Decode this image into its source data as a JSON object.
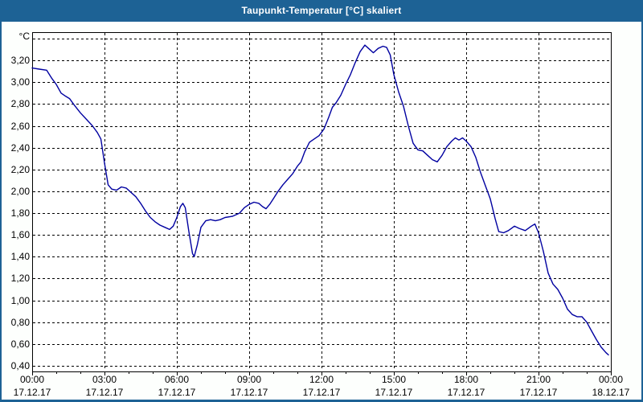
{
  "window": {
    "title": "Taupunkt-Temperatur [°C] skaliert"
  },
  "colors": {
    "titlebar": "#1d6295",
    "window_background": "#fdfffd",
    "plot_background": "#ffffff",
    "plot_border": "#000000",
    "gridline": "#000000",
    "text": "#000000",
    "line": "#0000a0"
  },
  "chart_data": {
    "type": "line",
    "title": "Taupunkt-Temperatur [°C] skaliert",
    "unit_label": "°C",
    "xlabel": "",
    "ylabel": "°C",
    "x_range_hours": [
      0,
      24
    ],
    "y_grid": {
      "min": 0.4,
      "max": 3.4,
      "step": 0.2
    },
    "grid": "dashed",
    "legend_position": "none",
    "y_ticks": [
      {
        "value": 3.2,
        "label": "3,20"
      },
      {
        "value": 3.0,
        "label": "3,00"
      },
      {
        "value": 2.8,
        "label": "2,80"
      },
      {
        "value": 2.6,
        "label": "2,60"
      },
      {
        "value": 2.4,
        "label": "2,40"
      },
      {
        "value": 2.2,
        "label": "2,20"
      },
      {
        "value": 2.0,
        "label": "2,00"
      },
      {
        "value": 1.8,
        "label": "1,80"
      },
      {
        "value": 1.6,
        "label": "1,60"
      },
      {
        "value": 1.4,
        "label": "1,40"
      },
      {
        "value": 1.2,
        "label": "1,20"
      },
      {
        "value": 1.0,
        "label": "1,00"
      },
      {
        "value": 0.8,
        "label": "0,80"
      },
      {
        "value": 0.6,
        "label": "0,60"
      },
      {
        "value": 0.4,
        "label": "0,40"
      }
    ],
    "x_ticks": [
      {
        "hour": 0,
        "time": "00:00",
        "date": "17.12.17"
      },
      {
        "hour": 3,
        "time": "03:00",
        "date": "17.12.17"
      },
      {
        "hour": 6,
        "time": "06:00",
        "date": "17.12.17"
      },
      {
        "hour": 9,
        "time": "09:00",
        "date": "17.12.17"
      },
      {
        "hour": 12,
        "time": "12:00",
        "date": "17.12.17"
      },
      {
        "hour": 15,
        "time": "15:00",
        "date": "17.12.17"
      },
      {
        "hour": 18,
        "time": "18:00",
        "date": "17.12.17"
      },
      {
        "hour": 21,
        "time": "21:00",
        "date": "17.12.17"
      },
      {
        "hour": 24,
        "time": "00:00",
        "date": "18.12.17"
      }
    ],
    "series": [
      {
        "name": "Taupunkt-Temperatur",
        "color": "#0000a0",
        "points": [
          [
            0.0,
            3.13
          ],
          [
            0.3,
            3.12
          ],
          [
            0.6,
            3.11
          ],
          [
            0.8,
            3.04
          ],
          [
            1.0,
            2.98
          ],
          [
            1.2,
            2.9
          ],
          [
            1.4,
            2.87
          ],
          [
            1.55,
            2.85
          ],
          [
            1.75,
            2.79
          ],
          [
            2.0,
            2.72
          ],
          [
            2.25,
            2.66
          ],
          [
            2.5,
            2.6
          ],
          [
            2.7,
            2.54
          ],
          [
            2.85,
            2.48
          ],
          [
            3.0,
            2.26
          ],
          [
            3.15,
            2.06
          ],
          [
            3.3,
            2.02
          ],
          [
            3.5,
            2.01
          ],
          [
            3.7,
            2.04
          ],
          [
            3.9,
            2.03
          ],
          [
            4.1,
            1.99
          ],
          [
            4.3,
            1.95
          ],
          [
            4.5,
            1.89
          ],
          [
            4.7,
            1.82
          ],
          [
            4.9,
            1.76
          ],
          [
            5.1,
            1.72
          ],
          [
            5.3,
            1.69
          ],
          [
            5.5,
            1.67
          ],
          [
            5.7,
            1.65
          ],
          [
            5.85,
            1.68
          ],
          [
            6.0,
            1.76
          ],
          [
            6.15,
            1.86
          ],
          [
            6.25,
            1.89
          ],
          [
            6.35,
            1.85
          ],
          [
            6.5,
            1.63
          ],
          [
            6.65,
            1.43
          ],
          [
            6.72,
            1.4
          ],
          [
            6.85,
            1.51
          ],
          [
            7.0,
            1.67
          ],
          [
            7.2,
            1.73
          ],
          [
            7.4,
            1.74
          ],
          [
            7.6,
            1.73
          ],
          [
            7.8,
            1.74
          ],
          [
            8.0,
            1.76
          ],
          [
            8.3,
            1.77
          ],
          [
            8.6,
            1.8
          ],
          [
            8.8,
            1.85
          ],
          [
            9.0,
            1.88
          ],
          [
            9.2,
            1.9
          ],
          [
            9.4,
            1.89
          ],
          [
            9.55,
            1.86
          ],
          [
            9.7,
            1.84
          ],
          [
            9.85,
            1.88
          ],
          [
            10.0,
            1.93
          ],
          [
            10.2,
            2.0
          ],
          [
            10.4,
            2.06
          ],
          [
            10.6,
            2.11
          ],
          [
            10.8,
            2.16
          ],
          [
            11.0,
            2.23
          ],
          [
            11.15,
            2.27
          ],
          [
            11.3,
            2.36
          ],
          [
            11.5,
            2.45
          ],
          [
            11.7,
            2.48
          ],
          [
            11.9,
            2.51
          ],
          [
            12.1,
            2.57
          ],
          [
            12.3,
            2.68
          ],
          [
            12.45,
            2.77
          ],
          [
            12.6,
            2.81
          ],
          [
            12.8,
            2.88
          ],
          [
            13.0,
            2.98
          ],
          [
            13.2,
            3.07
          ],
          [
            13.4,
            3.18
          ],
          [
            13.6,
            3.28
          ],
          [
            13.8,
            3.34
          ],
          [
            13.95,
            3.31
          ],
          [
            14.15,
            3.27
          ],
          [
            14.35,
            3.31
          ],
          [
            14.55,
            3.33
          ],
          [
            14.7,
            3.32
          ],
          [
            14.85,
            3.25
          ],
          [
            15.0,
            3.07
          ],
          [
            15.2,
            2.91
          ],
          [
            15.4,
            2.78
          ],
          [
            15.6,
            2.6
          ],
          [
            15.8,
            2.44
          ],
          [
            16.0,
            2.38
          ],
          [
            16.2,
            2.37
          ],
          [
            16.4,
            2.33
          ],
          [
            16.6,
            2.29
          ],
          [
            16.8,
            2.27
          ],
          [
            17.0,
            2.33
          ],
          [
            17.2,
            2.41
          ],
          [
            17.4,
            2.46
          ],
          [
            17.55,
            2.49
          ],
          [
            17.7,
            2.47
          ],
          [
            17.85,
            2.49
          ],
          [
            18.0,
            2.46
          ],
          [
            18.2,
            2.41
          ],
          [
            18.4,
            2.31
          ],
          [
            18.6,
            2.17
          ],
          [
            18.8,
            2.05
          ],
          [
            19.0,
            1.93
          ],
          [
            19.2,
            1.75
          ],
          [
            19.35,
            1.63
          ],
          [
            19.55,
            1.62
          ],
          [
            19.75,
            1.64
          ],
          [
            20.0,
            1.68
          ],
          [
            20.2,
            1.66
          ],
          [
            20.45,
            1.64
          ],
          [
            20.7,
            1.68
          ],
          [
            20.85,
            1.7
          ],
          [
            21.0,
            1.62
          ],
          [
            21.2,
            1.45
          ],
          [
            21.4,
            1.25
          ],
          [
            21.6,
            1.15
          ],
          [
            21.8,
            1.1
          ],
          [
            22.0,
            1.02
          ],
          [
            22.2,
            0.92
          ],
          [
            22.4,
            0.87
          ],
          [
            22.6,
            0.85
          ],
          [
            22.8,
            0.85
          ],
          [
            23.0,
            0.8
          ],
          [
            23.2,
            0.72
          ],
          [
            23.4,
            0.64
          ],
          [
            23.6,
            0.57
          ],
          [
            23.8,
            0.52
          ],
          [
            23.9,
            0.5
          ]
        ]
      }
    ]
  }
}
